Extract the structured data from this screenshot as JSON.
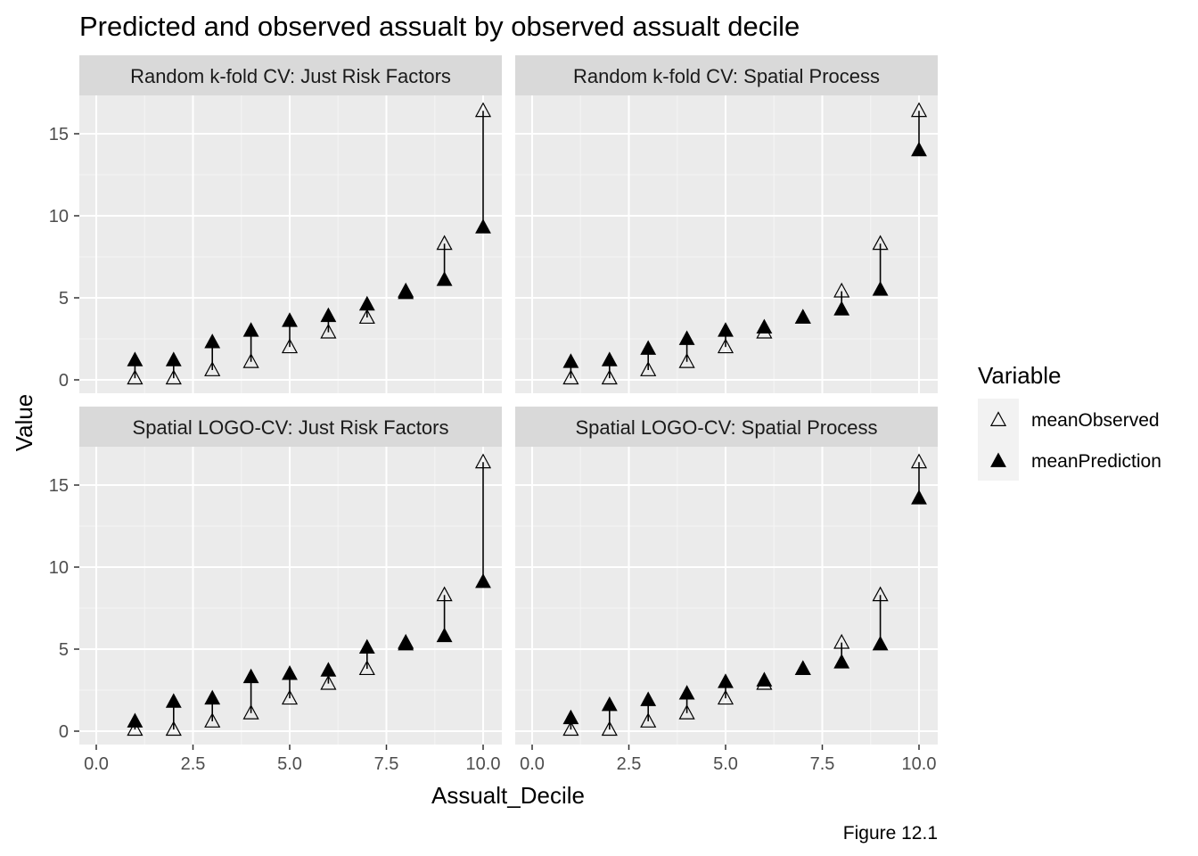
{
  "chart_data": {
    "type": "scatter",
    "title": "Predicted and observed assualt by observed assualt decile",
    "xlabel": "Assualt_Decile",
    "ylabel": "Value",
    "caption": "Figure 12.1",
    "xlim": [
      0,
      10
    ],
    "ylim": [
      0,
      17
    ],
    "x_ticks": [
      "0.0",
      "2.5",
      "5.0",
      "7.5",
      "10.0"
    ],
    "y_ticks": [
      "0",
      "5",
      "10",
      "15"
    ],
    "grid": true,
    "legend": {
      "title": "Variable",
      "position": "right",
      "entries": [
        "meanObserved",
        "meanPrediction"
      ]
    },
    "facets": [
      {
        "label": "Random k-fold CV: Just Risk Factors",
        "x": [
          1,
          2,
          3,
          4,
          5,
          6,
          7,
          8,
          9,
          10
        ],
        "meanObserved": [
          0.1,
          0.1,
          0.6,
          1.1,
          2.0,
          2.9,
          3.8,
          5.4,
          8.3,
          16.4
        ],
        "meanPrediction": [
          1.2,
          1.2,
          2.3,
          3.0,
          3.6,
          3.9,
          4.6,
          5.3,
          6.1,
          9.3
        ]
      },
      {
        "label": "Random k-fold CV: Spatial Process",
        "x": [
          1,
          2,
          3,
          4,
          5,
          6,
          7,
          8,
          9,
          10
        ],
        "meanObserved": [
          0.1,
          0.1,
          0.6,
          1.1,
          2.0,
          2.9,
          3.8,
          5.4,
          8.3,
          16.4
        ],
        "meanPrediction": [
          1.1,
          1.2,
          1.9,
          2.5,
          3.0,
          3.2,
          3.8,
          4.3,
          5.5,
          14.0
        ]
      },
      {
        "label": "Spatial LOGO-CV: Just Risk Factors",
        "x": [
          1,
          2,
          3,
          4,
          5,
          6,
          7,
          8,
          9,
          10
        ],
        "meanObserved": [
          0.1,
          0.1,
          0.6,
          1.1,
          2.0,
          2.9,
          3.8,
          5.4,
          8.3,
          16.4
        ],
        "meanPrediction": [
          0.6,
          1.8,
          2.0,
          3.3,
          3.5,
          3.7,
          5.1,
          5.3,
          5.8,
          9.1
        ]
      },
      {
        "label": "Spatial LOGO-CV: Spatial Process",
        "x": [
          1,
          2,
          3,
          4,
          5,
          6,
          7,
          8,
          9,
          10
        ],
        "meanObserved": [
          0.1,
          0.1,
          0.6,
          1.1,
          2.0,
          2.9,
          3.8,
          5.4,
          8.3,
          16.4
        ],
        "meanPrediction": [
          0.8,
          1.6,
          1.9,
          2.3,
          3.0,
          3.1,
          3.8,
          4.2,
          5.3,
          14.2
        ]
      }
    ]
  },
  "colors": {
    "panel_background": "#ebebeb",
    "strip_background": "#d9d9d9",
    "grid_major": "#ffffff",
    "grid_minor": "#f5f5f5",
    "point": "#000000",
    "tick_text": "#4d4d4d"
  }
}
